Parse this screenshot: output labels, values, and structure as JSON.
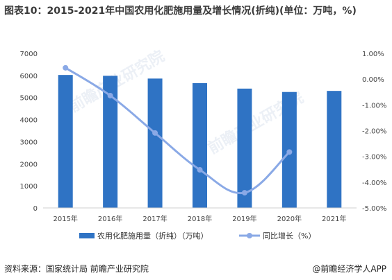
{
  "header": {
    "title": "图表10：2015-2021年中国农用化肥施用量及增长情况(折纯)(单位：万吨，%)"
  },
  "footer": {
    "source": "资料来源：国家统计局 前瞻产业研究院",
    "brand": "@前瞻经济学人APP"
  },
  "watermark": {
    "text": "前瞻产业研究院"
  },
  "chart_data": {
    "type": "bar",
    "categories": [
      "2015年",
      "2016年",
      "2017年",
      "2018年",
      "2019年",
      "2020年",
      "2021年"
    ],
    "series": [
      {
        "name": "农用化肥施用量（折纯）（万吨）",
        "type": "bar",
        "axis": "left",
        "color": "#2f73c4",
        "values": [
          6022,
          5984,
          5859,
          5653,
          5404,
          5251,
          5300
        ]
      },
      {
        "name": "同比增长（%）",
        "type": "line",
        "axis": "right",
        "color": "#8aa9e6",
        "values": [
          0.44,
          -0.64,
          -2.09,
          -3.52,
          -4.41,
          -2.83,
          null
        ]
      }
    ],
    "y_left": {
      "ylim": [
        0,
        7000
      ],
      "ticks": [
        0,
        1000,
        2000,
        3000,
        4000,
        5000,
        6000,
        7000
      ],
      "tick_labels": [
        "0",
        "1000",
        "2000",
        "3000",
        "4000",
        "5000",
        "6000",
        "7000"
      ]
    },
    "y_right": {
      "ylim": [
        -5,
        1
      ],
      "ticks": [
        1,
        0,
        -1,
        -2,
        -3,
        -4,
        -5
      ],
      "tick_labels": [
        "1.00%",
        "0.00%",
        "-1.00%",
        "-2.00%",
        "-3.00%",
        "-4.00%",
        "-5.00%"
      ]
    },
    "legend_position": "bottom",
    "grid": false
  }
}
